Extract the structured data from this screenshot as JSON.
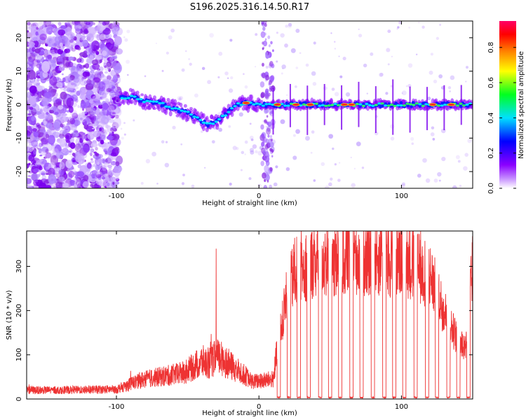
{
  "page_title": "S196.2025.316.14.50.R17",
  "chart_data": [
    {
      "type": "heatmap",
      "title": "S196.2025.316.14.50.R17",
      "xlabel": "Height of straight line (km)",
      "ylabel": "Frequency (Hz)",
      "xlim": [
        -163,
        150
      ],
      "ylim": [
        -25,
        25
      ],
      "xticks": [
        -100,
        0,
        100
      ],
      "xtick_labels": [
        "-100",
        "0",
        "100"
      ],
      "yticks": [
        -20,
        -10,
        0,
        10,
        20
      ],
      "ytick_labels": [
        "-20",
        "-10",
        "0",
        "10",
        "20"
      ],
      "colorbar": {
        "label": "Normalized spectral amplitude",
        "range": [
          0,
          0.95
        ],
        "ticks": [
          0.0,
          0.2,
          0.4,
          0.6,
          0.8
        ],
        "tick_labels": [
          "0.0",
          "0.2",
          "0.4",
          "0.6",
          "0.8"
        ],
        "colors": [
          "#ffffff",
          "#9a00ff",
          "#0000ff",
          "#00e0ff",
          "#00ff20",
          "#ffff00",
          "#ff8000",
          "#ff0000",
          "#ff0060"
        ]
      },
      "trace": {
        "x": [
          -100,
          -90,
          -80,
          -70,
          -60,
          -50,
          -40,
          -35,
          -30,
          -25,
          -20,
          -15,
          -10,
          -5,
          0,
          10,
          20,
          40,
          60,
          80,
          100,
          120,
          150
        ],
        "frequency": [
          1.5,
          2.5,
          1,
          0.5,
          -1,
          -2.5,
          -5,
          -6,
          -5,
          -3.5,
          -1.5,
          0,
          0.5,
          0.5,
          0,
          0,
          0,
          0,
          0,
          0,
          0,
          0,
          0
        ]
      }
    },
    {
      "type": "line",
      "xlabel": "Height of straight line (km)",
      "ylabel": "SNR (10 * v/v)",
      "xlim": [
        -163,
        150
      ],
      "ylim": [
        0,
        380
      ],
      "xticks": [
        -100,
        0,
        100
      ],
      "xtick_labels": [
        "-100",
        "0",
        "100"
      ],
      "yticks": [
        0,
        100,
        200,
        300
      ],
      "ytick_labels": [
        "0",
        "100",
        "200",
        "300"
      ],
      "color": "#ee3333",
      "envelope": {
        "x": [
          -163,
          -140,
          -100,
          -95,
          -90,
          -80,
          -70,
          -60,
          -52,
          -45,
          -40,
          -35,
          -30,
          -25,
          -20,
          -12,
          -5,
          0,
          10,
          15,
          20,
          25,
          30,
          40,
          50,
          60,
          70,
          80,
          90,
          100,
          110,
          120,
          130,
          140,
          145,
          150
        ],
        "y": [
          20,
          20,
          22,
          28,
          35,
          45,
          50,
          55,
          60,
          75,
          85,
          80,
          95,
          90,
          75,
          60,
          40,
          40,
          45,
          150,
          240,
          285,
          300,
          310,
          315,
          320,
          322,
          318,
          315,
          320,
          300,
          280,
          200,
          130,
          120,
          300
        ]
      },
      "spikes": {
        "x": [
          -30
        ],
        "y": [
          340
        ]
      },
      "dropouts": {
        "x": [
          14,
          21,
          28,
          35,
          43,
          50,
          57,
          65,
          72,
          80,
          88,
          95,
          102,
          110,
          118,
          125,
          133,
          140,
          147
        ],
        "y": [
          2,
          2,
          2,
          2,
          2,
          2,
          2,
          2,
          2,
          2,
          2,
          2,
          2,
          2,
          2,
          2,
          2,
          2,
          2
        ]
      }
    }
  ]
}
